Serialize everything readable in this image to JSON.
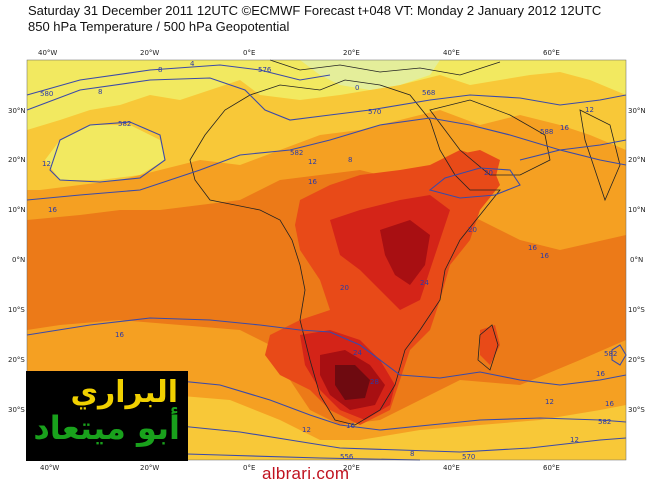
{
  "header": {
    "line1": "Saturday 31 December 2011 12UTC ©ECMWF Forecast t+048 VT: Monday 2 January 2012 12UTC",
    "line2": "850 hPa Temperature / 500 hPa Geopotential"
  },
  "axes": {
    "lon_top": [
      "40°W",
      "20°W",
      "0°E",
      "20°E",
      "40°E",
      "60°E"
    ],
    "lon_bottom": [
      "40°W",
      "20°W",
      "0°E",
      "20°E",
      "40°E",
      "60°E"
    ],
    "lat_left": [
      "30°N",
      "20°N",
      "10°N",
      "0°N",
      "10°S",
      "20°S",
      "30°S"
    ],
    "lat_right": [
      "30°N",
      "20°N",
      "10°N",
      "0°N",
      "10°S",
      "20°S",
      "30°S"
    ]
  },
  "contour_labels": [
    {
      "id": "t-576-top",
      "text": "576"
    },
    {
      "id": "t-580-left",
      "text": "580"
    },
    {
      "id": "t-582-left",
      "text": "582"
    },
    {
      "id": "t-582-mid",
      "text": "582"
    },
    {
      "id": "t-570-mid",
      "text": "570"
    },
    {
      "id": "t-568-ne",
      "text": "568"
    },
    {
      "id": "t-588-ne",
      "text": "588"
    },
    {
      "id": "t-582-bot",
      "text": "582"
    },
    {
      "id": "t-570-bot",
      "text": "570"
    },
    {
      "id": "t-556-bot",
      "text": "556"
    },
    {
      "id": "t-4-top",
      "text": "4"
    },
    {
      "id": "t-0-top",
      "text": "0"
    },
    {
      "id": "t-8-top",
      "text": "8"
    },
    {
      "id": "t-8-top2",
      "text": "8"
    },
    {
      "id": "t-12-west",
      "text": "12"
    },
    {
      "id": "t-16-west",
      "text": "16"
    },
    {
      "id": "t-12-sahara",
      "text": "12"
    },
    {
      "id": "t-8-sahara",
      "text": "8"
    },
    {
      "id": "t-16-sahara",
      "text": "16"
    },
    {
      "id": "t-16-ne",
      "text": "16"
    },
    {
      "id": "t-12-ne",
      "text": "12"
    },
    {
      "id": "t-20-horn",
      "text": "20"
    },
    {
      "id": "t-20-east",
      "text": "20"
    },
    {
      "id": "t-16-ocean1",
      "text": "16"
    },
    {
      "id": "t-16-ocean2",
      "text": "16"
    },
    {
      "id": "t-24-east",
      "text": "24"
    },
    {
      "id": "t-20-congo",
      "text": "20"
    },
    {
      "id": "t-16-atl",
      "text": "16"
    },
    {
      "id": "t-24-sa",
      "text": "24"
    },
    {
      "id": "t-28-sa",
      "text": "28"
    },
    {
      "id": "t-12-bot",
      "text": "12"
    },
    {
      "id": "t-16-sw",
      "text": "16"
    },
    {
      "id": "t-8-bot",
      "text": "8"
    },
    {
      "id": "t-12-se",
      "text": "12"
    },
    {
      "id": "t-12-se2",
      "text": "12"
    },
    {
      "id": "t-16-se",
      "text": "16"
    },
    {
      "id": "t-16-madag",
      "text": "16"
    },
    {
      "id": "t-582-se",
      "text": "582"
    }
  ],
  "logo": {
    "line1": "البراري",
    "line2": "أبو ميتعاد"
  },
  "site": "albrari.com",
  "colors": {
    "band_4_8": "#f2e960",
    "band_8_12": "#f8c838",
    "band_12_16": "#f5a022",
    "band_16_20": "#ec7a18",
    "band_20_24": "#e84a18",
    "band_24_28": "#d42418",
    "band_28_32": "#a80f12",
    "band_32_plus": "#6e0a10",
    "contour": "#3b4aa8",
    "coast": "#222222"
  }
}
